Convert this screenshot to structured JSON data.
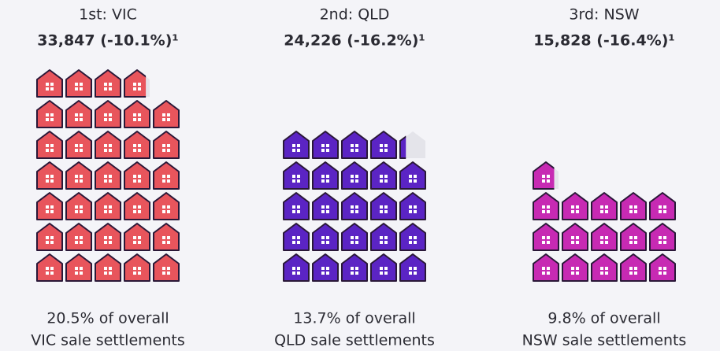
{
  "chart_data": {
    "type": "pictogram",
    "categories": [
      "1st: VIC",
      "2nd: QLD",
      "3rd: NSW"
    ],
    "values": [
      33847,
      24226,
      15828
    ],
    "value_labels": [
      "33,847 (-10.1%)¹",
      "24,226 (-16.2%)¹",
      "15,828 (-16.4%)¹"
    ],
    "colors": [
      "#e8555c",
      "#5b24c4",
      "#c72ab3"
    ],
    "captions": [
      [
        "20.5% of overall",
        "VIC sale settlements"
      ],
      [
        "13.7% of overall",
        "QLD sale settlements"
      ],
      [
        "9.8% of overall",
        "NSW sale settlements"
      ]
    ],
    "icon_value": 1000
  }
}
